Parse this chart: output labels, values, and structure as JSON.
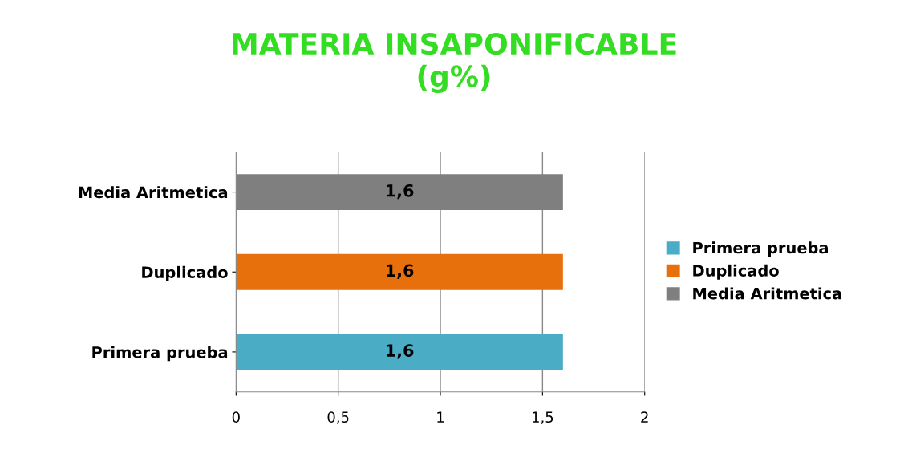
{
  "chart_data": {
    "type": "bar",
    "orientation": "horizontal",
    "title": "MATERIA INSAPONIFICABLE\n(g%)",
    "categories": [
      "Media Aritmetica",
      "Duplicado",
      "Primera prueba"
    ],
    "series": [
      {
        "name": "Primera prueba",
        "color": "#4bacc6",
        "values": [
          null,
          null,
          1.6
        ],
        "value_labels": [
          null,
          null,
          "1,6"
        ]
      },
      {
        "name": "Duplicado",
        "color": "#e8700c",
        "values": [
          null,
          1.6,
          null
        ],
        "value_labels": [
          null,
          "1,6",
          null
        ]
      },
      {
        "name": "Media Aritmetica",
        "color": "#7f7f7f",
        "values": [
          1.6,
          null,
          null
        ],
        "value_labels": [
          "1,6",
          null,
          null
        ]
      }
    ],
    "xlim": [
      0,
      2
    ],
    "xticks": [
      0,
      {
        "value": 0.5,
        "label": "0,5"
      },
      1,
      {
        "value": 1.5,
        "label": "1,5"
      },
      2
    ],
    "grid": "x",
    "legend": "right"
  }
}
